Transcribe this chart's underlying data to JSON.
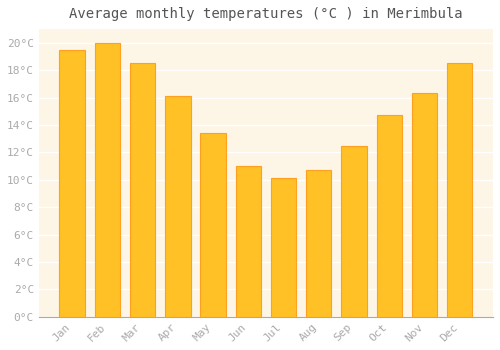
{
  "title": "Average monthly temperatures (°C ) in Merimbula",
  "months": [
    "Jan",
    "Feb",
    "Mar",
    "Apr",
    "May",
    "Jun",
    "Jul",
    "Aug",
    "Sep",
    "Oct",
    "Nov",
    "Dec"
  ],
  "values": [
    19.5,
    20.0,
    18.5,
    16.1,
    13.4,
    11.0,
    10.1,
    10.7,
    12.5,
    14.7,
    16.3,
    18.5
  ],
  "bar_color": "#FFC125",
  "bar_edge_color": "#FFA020",
  "figure_bg": "#FFFFFF",
  "axes_bg": "#FDF5E6",
  "grid_color": "#FFFFFF",
  "ylim": [
    0,
    21
  ],
  "ytick_step": 2,
  "title_fontsize": 10,
  "tick_fontsize": 8,
  "tick_color": "#AAAAAA",
  "title_color": "#555555",
  "font_family": "monospace"
}
